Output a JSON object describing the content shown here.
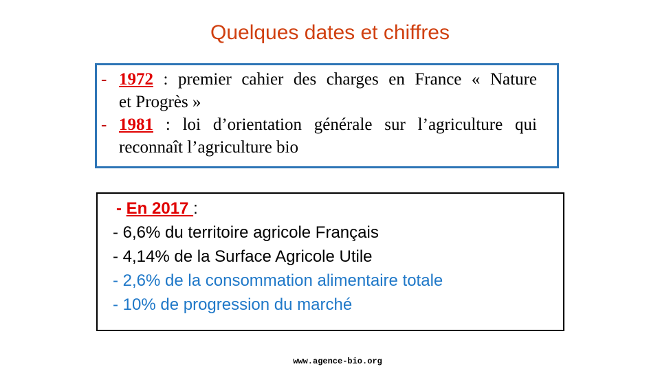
{
  "title": "Quelques dates et chiffres",
  "dates": [
    {
      "dash": "-",
      "year": "1972",
      "line1": " : premier cahier des charges en France « Nature",
      "line2": "et Progrès »"
    },
    {
      "dash": "-",
      "year": "1981",
      "line1": " : loi d’orientation générale sur l’agriculture qui",
      "line2": "reconnaît l’agriculture bio"
    }
  ],
  "figures": {
    "heading_prefix": "- ",
    "heading_year": "En 2017 ",
    "heading_suffix": ":",
    "items": [
      "- 6,6% du territoire agricole Français",
      "- 4,14% de la Surface Agricole Utile",
      "- 2,6% de la consommation alimentaire totale",
      "- 10% de progression du marché"
    ]
  },
  "footer": "www.agence-bio.org",
  "colors": {
    "title": "#d04010",
    "accent_red": "#e00000",
    "box_border_blue": "#2e75b6",
    "text_blue": "#1f78c8"
  }
}
